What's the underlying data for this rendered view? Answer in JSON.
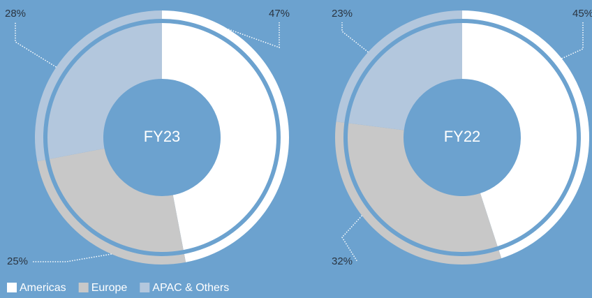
{
  "chart_data": [
    {
      "type": "donut",
      "title": "FY23",
      "categories": [
        "Americas",
        "Europe",
        "APAC & Others"
      ],
      "values": [
        47,
        25,
        28
      ],
      "value_labels": [
        "47%",
        "25%",
        "28%"
      ],
      "colors": [
        "#ffffff",
        "#c8c8c8",
        "#b3c7dd"
      ]
    },
    {
      "type": "donut",
      "title": "FY22",
      "categories": [
        "Americas",
        "Europe",
        "APAC & Others"
      ],
      "values": [
        45,
        32,
        23
      ],
      "value_labels": [
        "45%",
        "32%",
        "23%"
      ],
      "colors": [
        "#ffffff",
        "#c8c8c8",
        "#b3c7dd"
      ]
    }
  ]
}
